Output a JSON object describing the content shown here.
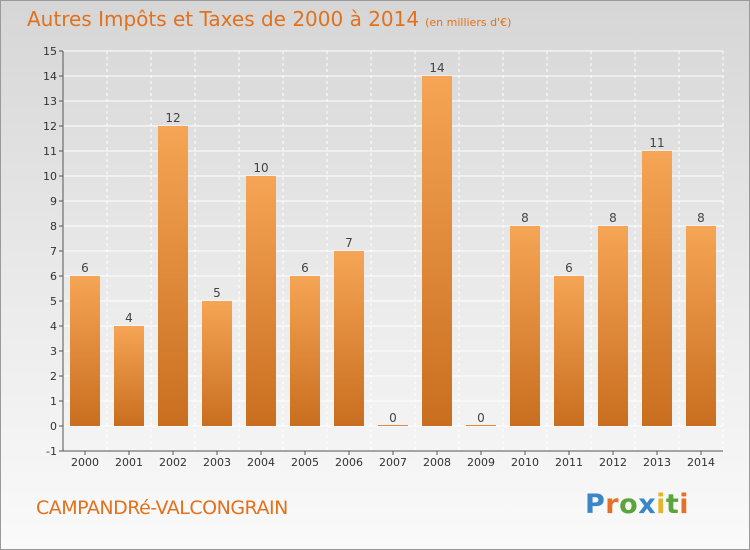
{
  "header": {
    "title": "Autres Impôts et Taxes de 2000 à 2014",
    "unit": "(en milliers d'€)"
  },
  "commune": "CAMPANDRé-VALCONGRAIN",
  "logo": {
    "p": "P",
    "r": "r",
    "o": "o",
    "x": "x",
    "i": "i",
    "t": "t",
    "i2": "i"
  },
  "colors": {
    "bar_top": "#f5a555",
    "bar_bottom": "#c96e1f",
    "accent": "#e2711d"
  },
  "chart_data": {
    "type": "bar",
    "categories": [
      "2000",
      "2001",
      "2002",
      "2003",
      "2004",
      "2005",
      "2006",
      "2007",
      "2008",
      "2009",
      "2010",
      "2011",
      "2012",
      "2013",
      "2014"
    ],
    "values": [
      6,
      4,
      12,
      5,
      10,
      6,
      7,
      0,
      14,
      0,
      8,
      6,
      8,
      11,
      8
    ],
    "ylim": [
      -1,
      15
    ],
    "yticks": [
      "-1",
      "0",
      "1",
      "2",
      "3",
      "4",
      "5",
      "6",
      "7",
      "8",
      "9",
      "10",
      "11",
      "12",
      "13",
      "14",
      "15"
    ],
    "grid": true,
    "legend": "none"
  }
}
